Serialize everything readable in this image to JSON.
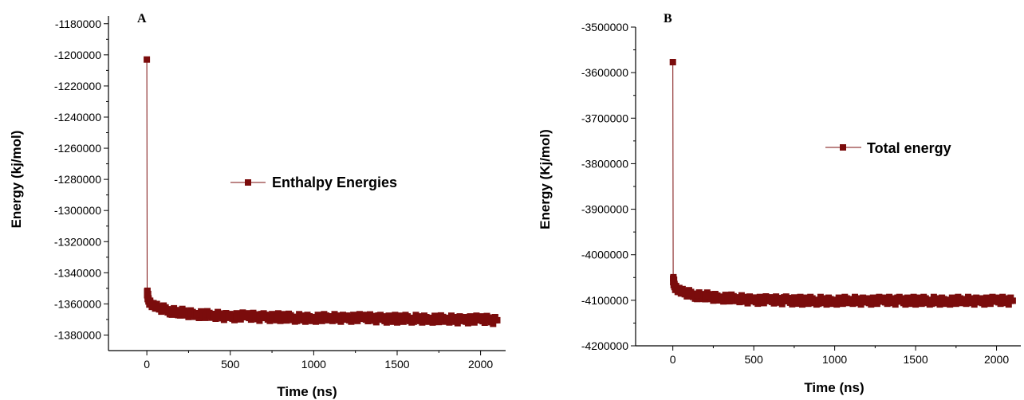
{
  "chart_data": [
    {
      "type": "line",
      "panel_label": "A",
      "xlabel": "Time (ns)",
      "ylabel": "Energy (kj/mol)",
      "xlim": [
        -230,
        2150
      ],
      "ylim": [
        -1390000,
        -1175000
      ],
      "xticks": [
        0,
        500,
        1000,
        1500,
        2000
      ],
      "yticks": [
        -1380000,
        -1360000,
        -1340000,
        -1320000,
        -1300000,
        -1280000,
        -1260000,
        -1240000,
        -1220000,
        -1200000,
        -1180000
      ],
      "legend_position": "center",
      "series": [
        {
          "name": "Enthalpy Energies",
          "color": "#7b0c0c",
          "x": [
            0,
            2,
            5,
            10,
            20,
            40,
            60,
            100,
            150,
            200,
            300,
            400,
            500,
            600,
            700,
            800,
            900,
            1000,
            1100,
            1200,
            1300,
            1400,
            1500,
            1600,
            1700,
            1800,
            1900,
            2000,
            2100
          ],
          "y": [
            -1203000,
            -1352000,
            -1355000,
            -1357000,
            -1359000,
            -1361000,
            -1362000,
            -1363500,
            -1364500,
            -1365500,
            -1366500,
            -1367500,
            -1368000,
            -1368000,
            -1368500,
            -1368500,
            -1369000,
            -1369000,
            -1369000,
            -1369000,
            -1369000,
            -1369500,
            -1369500,
            -1369500,
            -1369500,
            -1370000,
            -1370000,
            -1370000,
            -1370500
          ]
        }
      ]
    },
    {
      "type": "line",
      "panel_label": "B",
      "xlabel": "Time (ns)",
      "ylabel": "Energy (Kj/mol)",
      "xlim": [
        -230,
        2150
      ],
      "ylim": [
        -4200000,
        -3500000
      ],
      "xticks": [
        0,
        500,
        1000,
        1500,
        2000
      ],
      "yticks": [
        -4200000,
        -4100000,
        -4000000,
        -3900000,
        -3800000,
        -3700000,
        -3600000,
        -3500000
      ],
      "legend_position": "upper-right",
      "series": [
        {
          "name": "Total energy",
          "color": "#7b0c0c",
          "x": [
            0,
            2,
            5,
            10,
            20,
            40,
            60,
            100,
            150,
            200,
            300,
            400,
            500,
            600,
            700,
            800,
            900,
            1000,
            1100,
            1200,
            1300,
            1400,
            1500,
            1600,
            1700,
            1800,
            1900,
            2000,
            2100
          ],
          "y": [
            -3577000,
            -4052000,
            -4060000,
            -4066000,
            -4072000,
            -4078000,
            -4082000,
            -4086000,
            -4089000,
            -4091000,
            -4094000,
            -4097000,
            -4099000,
            -4100000,
            -4100000,
            -4101000,
            -4101000,
            -4101000,
            -4101000,
            -4101000,
            -4101000,
            -4101000,
            -4101000,
            -4101000,
            -4101000,
            -4101000,
            -4101000,
            -4101000,
            -4101000
          ]
        }
      ]
    }
  ]
}
